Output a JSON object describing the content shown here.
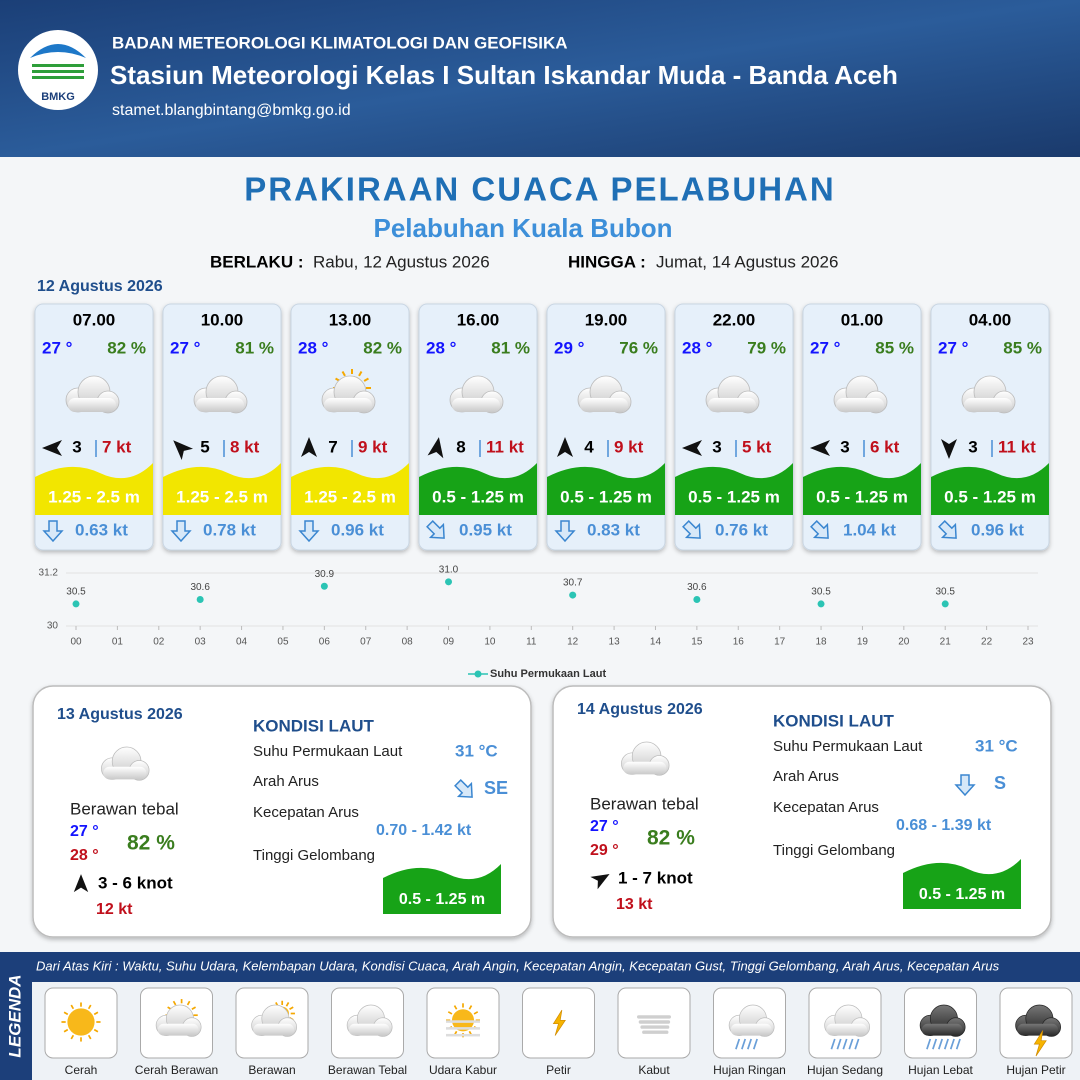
{
  "header": {
    "logo": "BMKG",
    "org": "BADAN METEOROLOGI KLIMATOLOGI DAN GEOFISIKA",
    "station": "Stasiun Meteorologi Kelas I Sultan Iskandar Muda - Banda Aceh",
    "email": "stamet.blangbintang@bmkg.go.id"
  },
  "title": "PRAKIRAAN CUACA PELABUHAN",
  "subtitle": "Pelabuhan Kuala Bubon",
  "validity": {
    "from_label": "BERLAKU :",
    "from": "Rabu, 12 Agustus 2026",
    "to_label": "HINGGA :",
    "to": "Jumat, 14 Agustus 2026"
  },
  "day1": {
    "date": "12 Agustus 2026",
    "forecasts": [
      {
        "time": "07.00",
        "temp": "27 °",
        "humidity": "82 %",
        "icon": 3,
        "wind_dir_deg": 270,
        "wind": "3",
        "gust": "7 kt",
        "wave": "1.25 - 2.5 m",
        "wave_color": "#f2e600",
        "current_dir_deg": 180,
        "current": "0.63 kt"
      },
      {
        "time": "10.00",
        "temp": "27 °",
        "humidity": "81 %",
        "icon": 3,
        "wind_dir_deg": 315,
        "wind": "5",
        "gust": "8 kt",
        "wave": "1.25 - 2.5 m",
        "wave_color": "#f2e600",
        "current_dir_deg": 180,
        "current": "0.78 kt"
      },
      {
        "time": "13.00",
        "temp": "28 °",
        "humidity": "82 %",
        "icon": 1,
        "wind_dir_deg": 0,
        "wind": "7",
        "gust": "9 kt",
        "wave": "1.25 - 2.5 m",
        "wave_color": "#f2e600",
        "current_dir_deg": 180,
        "current": "0.96 kt"
      },
      {
        "time": "16.00",
        "temp": "28 °",
        "humidity": "81 %",
        "icon": 3,
        "wind_dir_deg": 10,
        "wind": "8",
        "gust": "11 kt",
        "wave": "0.5 - 1.25 m",
        "wave_color": "#17a317",
        "current_dir_deg": 135,
        "current": "0.95 kt"
      },
      {
        "time": "19.00",
        "temp": "29 °",
        "humidity": "76 %",
        "icon": 3,
        "wind_dir_deg": 0,
        "wind": "4",
        "gust": "9 kt",
        "wave": "0.5 - 1.25 m",
        "wave_color": "#17a317",
        "current_dir_deg": 180,
        "current": "0.83 kt"
      },
      {
        "time": "22.00",
        "temp": "28 °",
        "humidity": "79 %",
        "icon": 3,
        "wind_dir_deg": 270,
        "wind": "3",
        "gust": "5 kt",
        "wave": "0.5 - 1.25 m",
        "wave_color": "#17a317",
        "current_dir_deg": 135,
        "current": "0.76 kt"
      },
      {
        "time": "01.00",
        "temp": "27 °",
        "humidity": "85 %",
        "icon": 3,
        "wind_dir_deg": 270,
        "wind": "3",
        "gust": "6 kt",
        "wave": "0.5 - 1.25 m",
        "wave_color": "#17a317",
        "current_dir_deg": 135,
        "current": "1.04 kt"
      },
      {
        "time": "04.00",
        "temp": "27 °",
        "humidity": "85 %",
        "icon": 3,
        "wind_dir_deg": 180,
        "wind": "3",
        "gust": "11 kt",
        "wave": "0.5 - 1.25 m",
        "wave_color": "#17a317",
        "current_dir_deg": 135,
        "current": "0.96 kt"
      }
    ]
  },
  "sst_chart": {
    "type": "scatter",
    "x": [
      0,
      3,
      6,
      9,
      12,
      15,
      18,
      21
    ],
    "values": [
      30.5,
      30.6,
      30.9,
      31.0,
      30.7,
      30.6,
      30.5,
      30.5
    ],
    "value_labels": [
      "30.5",
      "30.6",
      "30.9",
      "31.0",
      "30.7",
      "30.6",
      "30.5",
      "30.5"
    ],
    "color": "#2bc4b4",
    "series_name": "Suhu Permukaan Laut",
    "ylim": [
      30,
      31.2
    ],
    "yticks": [
      30,
      31.2
    ],
    "xlim": [
      0,
      23
    ],
    "xticks": [
      {
        "value": 0,
        "label": "00"
      },
      {
        "value": 1,
        "label": "01"
      },
      {
        "value": 2,
        "label": "02"
      },
      {
        "value": 3,
        "label": "03"
      },
      {
        "value": 4,
        "label": "04"
      },
      {
        "value": 5,
        "label": "05"
      },
      {
        "value": 6,
        "label": "06"
      },
      {
        "value": 7,
        "label": "07"
      },
      {
        "value": 8,
        "label": "08"
      },
      {
        "value": 9,
        "label": "09"
      },
      10,
      11,
      12,
      13,
      14,
      15,
      16,
      17,
      18,
      19,
      20,
      21,
      22,
      23
    ]
  },
  "days": [
    {
      "date": "13 Agustus 2026",
      "icon": 3,
      "condition": "Berawan tebal",
      "temp_min": "27 °",
      "temp_max": "28 °",
      "humidity": "82 %",
      "wind_dir_deg": 0,
      "wind": "3 - 6 knot",
      "gust": "12 kt",
      "sea_title": "KONDISI LAUT",
      "labels": [
        "Suhu Permukaan Laut",
        "Arah Arus",
        "Kecepatan Arus",
        "Tinggi Gelombang"
      ],
      "sst": "31 °C",
      "current_dir_deg": 135,
      "current_dir": "SE",
      "current": "0.70 - 1.42 kt",
      "wave": "0.5 - 1.25 m",
      "wave_color": "#17a317"
    },
    {
      "date": "14 Agustus 2026",
      "icon": 3,
      "condition": "Berawan tebal",
      "temp_min": "27 °",
      "temp_max": "29 °",
      "humidity": "82 %",
      "wind_dir_deg": 60,
      "wind": "1 - 7 knot",
      "gust": "13 kt",
      "sea_title": "KONDISI LAUT",
      "labels": [
        "Suhu Permukaan Laut",
        "Arah Arus",
        "Kecepatan Arus",
        "Tinggi Gelombang"
      ],
      "sst": "31 °C",
      "current_dir_deg": 180,
      "current_dir": "S",
      "current": "0.68 - 1.39 kt",
      "wave": "0.5 - 1.25 m",
      "wave_color": "#17a317"
    }
  ],
  "legend": {
    "title": "LEGENDA",
    "description": "Dari Atas Kiri : Waktu, Suhu Udara, Kelembapan Udara, Kondisi Cuaca, Arah Angin, Kecepatan Angin, Kecepatan Gust, Tinggi Gelombang, Arah Arus, Kecepatan Arus",
    "items": [
      "Cerah",
      "Cerah Berawan",
      "Berawan",
      "Berawan Tebal",
      "Udara Kabur",
      "Petir",
      "Kabut",
      "Hujan Ringan",
      "Hujan Sedang",
      "Hujan Lebat",
      "Hujan Petir"
    ]
  }
}
